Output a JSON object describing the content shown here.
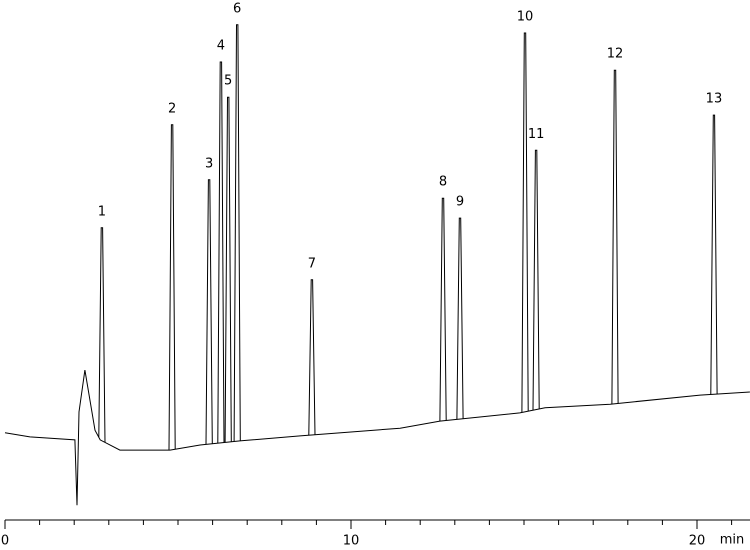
{
  "chart_data": {
    "type": "chromatogram",
    "x_label": "min",
    "xlim": [
      0,
      21.5
    ],
    "xticks": [
      0,
      10,
      20
    ],
    "xminor_ticks": [
      0,
      1,
      2,
      3,
      4,
      5,
      6,
      7,
      8,
      9,
      10,
      11,
      12,
      13,
      14,
      15,
      16,
      17,
      18,
      19,
      20,
      21
    ],
    "ylim": [
      0,
      100
    ],
    "color": "#000000",
    "baseline": {
      "x": [
        0,
        0.72,
        2.02,
        2.08,
        2.14,
        2.31,
        2.6,
        2.75,
        3.32,
        4.77,
        5.64,
        6.79,
        8.53,
        11.42,
        12.57,
        14.88,
        15.61,
        17.49,
        20.09,
        21.53
      ],
      "values": [
        17.1,
        16.3,
        15.7,
        2.9,
        21.2,
        29.4,
        17.6,
        15.7,
        13.7,
        13.7,
        14.7,
        15.5,
        16.5,
        18.0,
        19.4,
        21.0,
        22.0,
        22.7,
        24.5,
        25.1
      ]
    },
    "peaks": {
      "labels": [
        "1",
        "2",
        "3",
        "4",
        "5",
        "6",
        "7",
        "8",
        "9",
        "10",
        "11",
        "12",
        "13"
      ],
      "x": [
        2.8,
        4.83,
        5.9,
        6.24,
        6.45,
        6.71,
        8.87,
        12.66,
        13.15,
        15.03,
        15.35,
        17.63,
        20.49
      ],
      "values": [
        57.3,
        77.5,
        66.7,
        89.8,
        82.9,
        97.1,
        47.1,
        63.1,
        59.2,
        95.5,
        72.5,
        88.2,
        79.4
      ]
    }
  }
}
